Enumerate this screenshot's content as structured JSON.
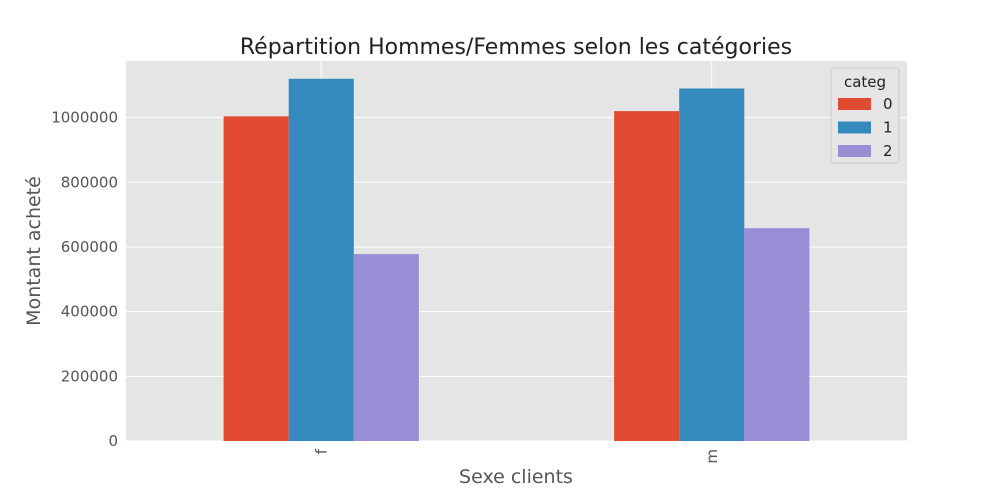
{
  "colors": {
    "background": "#ffffff",
    "plot_background": "#e5e5e5",
    "grid": "#ffffff",
    "series": [
      "#e24a33",
      "#348abd",
      "#988ed5"
    ]
  },
  "chart_data": {
    "type": "bar",
    "title": "Répartition Hommes/Femmes selon les catégories",
    "xlabel": "Sexe clients",
    "ylabel": "Montant acheté",
    "categories": [
      "f",
      "m"
    ],
    "series": [
      {
        "name": "0",
        "values": [
          1004000,
          1020000
        ]
      },
      {
        "name": "1",
        "values": [
          1120000,
          1090000
        ]
      },
      {
        "name": "2",
        "values": [
          578000,
          658000
        ]
      }
    ],
    "ylim": [
      0,
      1175000
    ],
    "yticks": [
      0,
      200000,
      400000,
      600000,
      800000,
      1000000
    ],
    "ytick_labels": [
      "0",
      "200000",
      "400000",
      "600000",
      "800000",
      "1000000"
    ],
    "grid": true,
    "legend": {
      "title": "categ",
      "position": "top-right"
    }
  }
}
